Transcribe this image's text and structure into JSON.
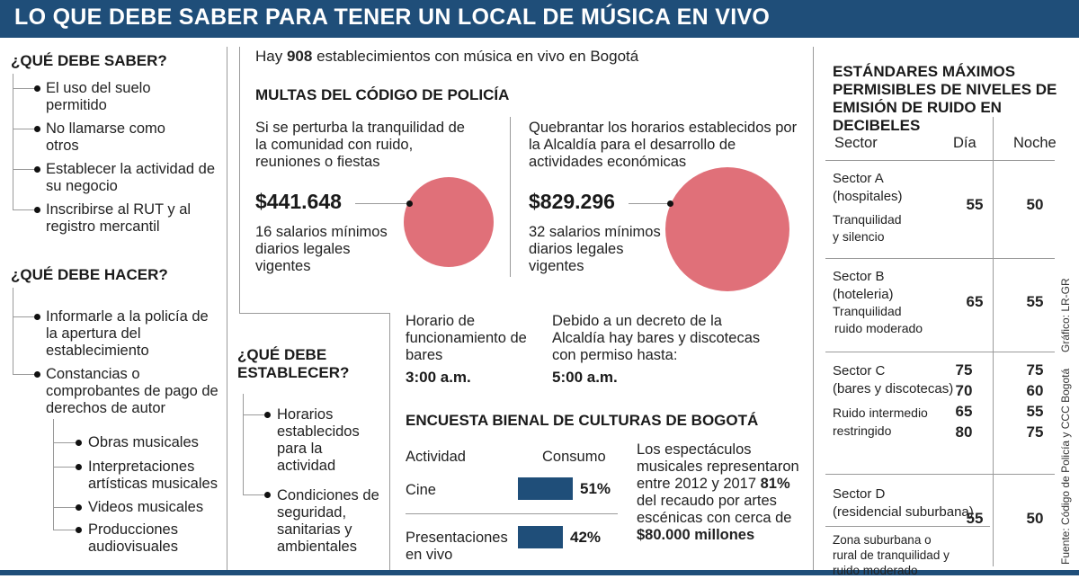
{
  "title": "LO QUE DEBE SABER PARA TENER UN LOCAL DE MÚSICA EN VIVO",
  "saber": {
    "heading": "¿QUÉ DEBE SABER?",
    "items": [
      "El uso del suelo permitido",
      "No llamarse como otros",
      "Establecer la actividad de su negocio",
      "Inscribirse al RUT y al registro mercantil"
    ]
  },
  "hacer": {
    "heading": "¿QUÉ DEBE HACER?",
    "items": [
      "Informarle a la policía de la apertura del establecimiento",
      "Constancias o comprobantes de pago de derechos de autor"
    ],
    "subitems": [
      "Obras musicales",
      "Interpretaciones artísticas musicales",
      "Videos musicales",
      "Producciones audiovisuales"
    ]
  },
  "establecer": {
    "heading": "¿QUÉ DEBE ESTABLECER?",
    "items": [
      "Horarios establecidos para la actividad",
      "Condiciones de seguridad, sanitarias y ambientales"
    ]
  },
  "intro": {
    "pre": "Hay ",
    "number": "908",
    "post": " establecimientos con música en vivo en Bogotá"
  },
  "multas": {
    "heading": "MULTAS DEL CÓDIGO DE POLICÍA",
    "items": [
      {
        "desc": "Si se perturba la tranquilidad de la comunidad con ruido, reuniones o fiestas",
        "amount": "$441.648",
        "salarios": "16 salarios mínimos diarios legales vigentes",
        "value": 441648
      },
      {
        "desc": "Quebrantar los horarios establecidos por la Alcaldía para el desarrollo de actividades económicas",
        "amount": "$829.296",
        "salarios": "32 salarios mínimos diarios legales vigentes",
        "value": 829296
      }
    ]
  },
  "horarios": {
    "left": {
      "text": "Horario de funcionamiento de bares",
      "time": "3:00 a.m."
    },
    "right": {
      "text": "Debido a un decreto de la Alcaldía hay bares y discotecas con permiso hasta:",
      "time": "5:00 a.m."
    }
  },
  "encuesta": {
    "heading": "ENCUESTA BIENAL DE CULTURAS DE BOGOTÁ",
    "col_actividad": "Actividad",
    "col_consumo": "Consumo",
    "note_pre": "Los espectáculos musicales representaron entre 2012 y 2017 ",
    "note_pct": "81%",
    "note_mid": " del recaudo por artes escénicas con cerca de ",
    "note_amount": "$80.000 millones"
  },
  "chart_data": {
    "type": "bar",
    "categories": [
      "Cine",
      "Presentaciones en vivo"
    ],
    "values": [
      51,
      42
    ],
    "value_labels": [
      "51%",
      "42%"
    ],
    "title": "",
    "xlabel": "Consumo",
    "ylabel": "Actividad"
  },
  "estandares": {
    "heading": "ESTÁNDARES MÁXIMOS PERMISIBLES DE NIVELES DE EMISIÓN DE RUIDO EN DECIBELES",
    "col_sector": "Sector",
    "col_dia": "Día",
    "col_noche": "Noche",
    "sectors": [
      {
        "name": "Sector A",
        "sub": "(hospitales)",
        "desc1": "Tranquilidad",
        "desc2": "y silencio",
        "dia": "55",
        "noche": "50"
      },
      {
        "name": "Sector B",
        "sub": "(hoteleria)",
        "desc1": "Tranquilidad",
        "desc2": "ruido moderado",
        "dia": "65",
        "noche": "55"
      },
      {
        "name": "Sector C",
        "sub": "(bares y discotecas)",
        "desc1": "Ruido intermedio",
        "desc2": "restringido",
        "dia": [
          "75",
          "70",
          "65",
          "80"
        ],
        "noche": [
          "75",
          "60",
          "55",
          "75"
        ]
      },
      {
        "name": "Sector D",
        "sub": "(residencial suburbana)",
        "desc1": "Zona suburbana o",
        "desc2": "rural de tranquilidad y",
        "desc3": "ruido moderado",
        "dia": "55",
        "noche": "50"
      }
    ]
  },
  "credits": {
    "grafico": "Gráfico: LR-GR",
    "fuente": "Fuente: Código de Policía y CCC Bogotá"
  }
}
